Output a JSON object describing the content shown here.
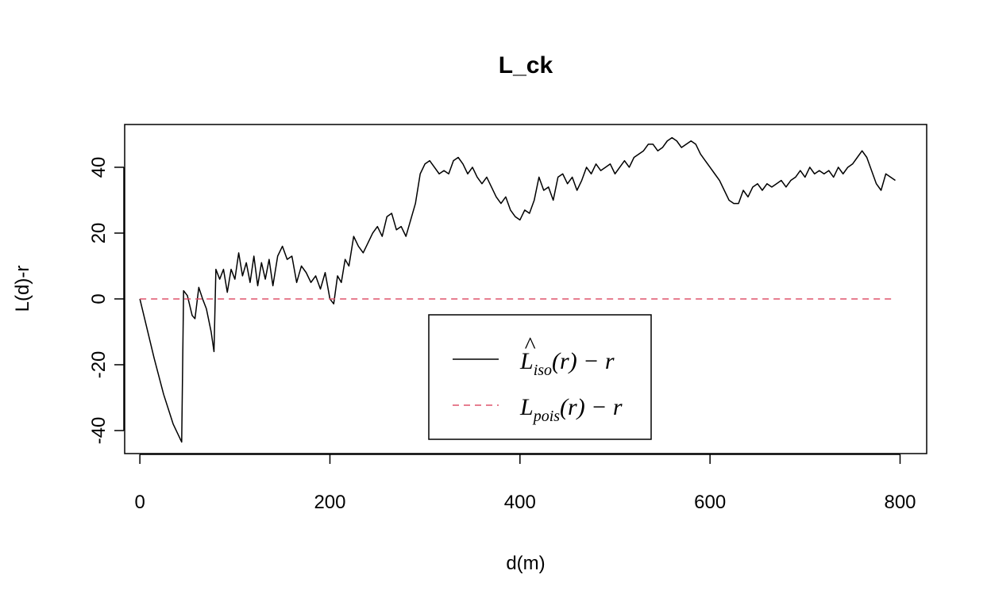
{
  "chart_data": {
    "type": "line",
    "title": "L_ck",
    "xlabel": "d(m)",
    "ylabel": "L(d)-r",
    "xlim": [
      -16,
      828
    ],
    "ylim": [
      -47,
      53
    ],
    "x_ticks": [
      0,
      200,
      400,
      600,
      800
    ],
    "y_ticks": [
      -40,
      -20,
      0,
      20,
      40
    ],
    "grid": false,
    "legend_position": "bottom-center",
    "series": [
      {
        "name": "L̂iso(r) − r",
        "name_main": "L",
        "name_sub": "iso",
        "name_rest": "(r) − r",
        "color": "#000000",
        "dash": "solid",
        "x": [
          0,
          5,
          15,
          25,
          35,
          44,
          46,
          50,
          55,
          58,
          62,
          66,
          70,
          75,
          78,
          80,
          84,
          88,
          92,
          96,
          100,
          104,
          108,
          112,
          116,
          120,
          124,
          128,
          132,
          136,
          140,
          145,
          150,
          155,
          160,
          165,
          170,
          175,
          180,
          185,
          190,
          195,
          200,
          204,
          208,
          212,
          216,
          220,
          225,
          230,
          235,
          240,
          245,
          250,
          255,
          260,
          265,
          270,
          275,
          280,
          285,
          290,
          295,
          300,
          305,
          310,
          315,
          320,
          325,
          330,
          335,
          340,
          345,
          350,
          355,
          360,
          365,
          370,
          375,
          380,
          385,
          390,
          395,
          400,
          405,
          410,
          415,
          420,
          425,
          430,
          435,
          440,
          445,
          450,
          455,
          460,
          465,
          470,
          475,
          480,
          485,
          490,
          495,
          500,
          505,
          510,
          515,
          520,
          525,
          530,
          535,
          540,
          545,
          550,
          555,
          560,
          565,
          570,
          575,
          580,
          585,
          590,
          595,
          600,
          605,
          610,
          615,
          620,
          625,
          630,
          635,
          640,
          645,
          650,
          655,
          660,
          665,
          670,
          675,
          680,
          685,
          690,
          695,
          700,
          705,
          710,
          715,
          720,
          725,
          730,
          735,
          740,
          745,
          750,
          755,
          760,
          765,
          770,
          775,
          780,
          785,
          790,
          795
        ],
        "y": [
          0,
          -6,
          -18,
          -29,
          -38,
          -43.5,
          2.5,
          1,
          -5,
          -6,
          3.5,
          0,
          -3,
          -10,
          -16,
          9,
          6,
          9,
          2,
          9,
          6,
          14,
          7,
          11,
          5,
          13,
          4,
          11,
          6,
          12,
          4,
          13,
          16,
          12,
          13,
          5,
          10,
          8,
          5,
          7,
          3,
          8,
          0,
          -1.5,
          7,
          5,
          12,
          10,
          19,
          16,
          14,
          17,
          20,
          22,
          19,
          25,
          26,
          21,
          22,
          19,
          24,
          29,
          38,
          41,
          42,
          40,
          38,
          39,
          38,
          42,
          43,
          41,
          38,
          40,
          37,
          35,
          37,
          34,
          31,
          29,
          31,
          27,
          25,
          24,
          27,
          26,
          30,
          37,
          33,
          34,
          30,
          37,
          38,
          35,
          37,
          33,
          36,
          40,
          38,
          41,
          39,
          40,
          41,
          38,
          40,
          42,
          40,
          43,
          44,
          45,
          47,
          47,
          45,
          46,
          48,
          49,
          48,
          46,
          47,
          48,
          47,
          44,
          42,
          40,
          38,
          36,
          33,
          30,
          29,
          29,
          33,
          31,
          34,
          35,
          33,
          35,
          34,
          35,
          36,
          34,
          36,
          37,
          39,
          37,
          40,
          38,
          39,
          38,
          39,
          37,
          40,
          38,
          40,
          41,
          43,
          45,
          43,
          39,
          35,
          33,
          38,
          37,
          36
        ]
      },
      {
        "name": "Lpois(r) − r",
        "name_main": "L",
        "name_sub": "pois",
        "name_rest": "(r) − r",
        "color": "#DF536B",
        "dash": "dashed",
        "x": [
          0,
          795
        ],
        "y": [
          0,
          0
        ]
      }
    ]
  }
}
